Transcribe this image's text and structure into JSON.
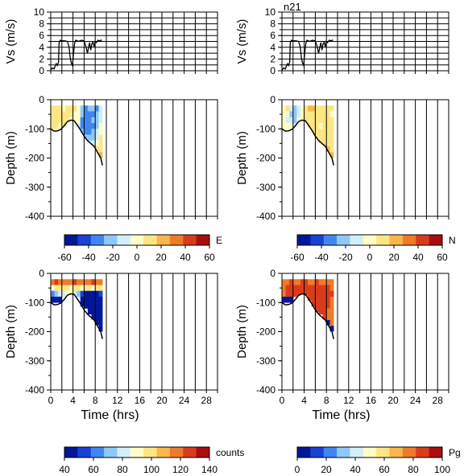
{
  "figure_tag": "n21",
  "colors": {
    "bathymetry_line": "#000000",
    "grid_line": "#000000",
    "frame": "#000000"
  },
  "colorscale": [
    "#00169b",
    "#1743d3",
    "#3f86f4",
    "#8fc8f8",
    "#d2eefd",
    "#fffdc6",
    "#fce684",
    "#f9b64a",
    "#ef7a2a",
    "#d83c1d",
    "#a80d10"
  ],
  "chart_data": [
    {
      "type": "line",
      "panel": "speed-left",
      "ylabel": "Vs (m/s)",
      "xlabel": "",
      "xlim": [
        0,
        30
      ],
      "ylim": [
        0,
        10
      ],
      "yticks": [
        0,
        2,
        4,
        6,
        8,
        10
      ],
      "grid": true,
      "x": [
        0.0,
        0.3,
        0.6,
        0.8,
        1.0,
        1.2,
        1.4,
        1.5,
        1.7,
        2.0,
        2.5,
        3.0,
        3.3,
        3.5,
        3.7,
        3.9,
        4.1,
        4.3,
        4.5,
        5.0,
        5.5,
        6.0,
        6.3,
        6.6,
        6.8,
        7.0,
        7.2,
        7.4,
        7.6,
        7.8,
        8.0,
        8.2,
        8.5,
        8.8,
        9.0,
        9.2
      ],
      "y": [
        0.1,
        0.5,
        0.3,
        0.8,
        1.2,
        0.9,
        1.5,
        4.8,
        5.2,
        5.1,
        5.1,
        5.0,
        4.0,
        2.2,
        1.3,
        0.9,
        3.0,
        4.7,
        5.2,
        5.0,
        5.2,
        5.1,
        4.2,
        3.0,
        4.0,
        4.8,
        3.5,
        4.6,
        4.9,
        4.1,
        5.0,
        4.8,
        5.2,
        5.1,
        5.2,
        5.2
      ]
    },
    {
      "type": "line",
      "panel": "speed-right",
      "ylabel": "Vs (m/s)",
      "xlabel": "",
      "xlim": [
        0,
        30
      ],
      "ylim": [
        0,
        10
      ],
      "yticks": [
        0,
        2,
        4,
        6,
        8,
        10
      ],
      "grid": true,
      "x": [
        0.0,
        0.3,
        0.6,
        0.8,
        1.0,
        1.2,
        1.4,
        1.5,
        1.7,
        2.0,
        2.5,
        3.0,
        3.3,
        3.5,
        3.7,
        3.9,
        4.1,
        4.3,
        4.5,
        5.0,
        5.5,
        6.0,
        6.3,
        6.6,
        6.8,
        7.0,
        7.2,
        7.4,
        7.6,
        7.8,
        8.0,
        8.2,
        8.5,
        8.8,
        9.0,
        9.2
      ],
      "y": [
        0.1,
        0.5,
        0.3,
        0.8,
        1.2,
        0.9,
        1.5,
        4.8,
        5.2,
        5.1,
        5.1,
        5.0,
        4.0,
        2.2,
        1.3,
        0.9,
        3.0,
        4.7,
        5.2,
        5.0,
        5.2,
        5.1,
        4.2,
        3.0,
        4.0,
        4.8,
        3.5,
        4.6,
        4.9,
        4.1,
        5.0,
        4.8,
        5.2,
        5.1,
        5.2,
        5.2
      ]
    },
    {
      "type": "heatmap",
      "panel": "E",
      "ylabel": "Depth (m)",
      "xlabel": "",
      "xlim": [
        0,
        30
      ],
      "ylim": [
        -400,
        0
      ],
      "yticks": [
        -400,
        -300,
        -200,
        -100,
        0
      ],
      "xticks": [],
      "colorbar": {
        "label": "E",
        "ticks": [
          -60,
          -40,
          -20,
          0,
          20,
          40,
          60
        ],
        "range": [
          -60,
          60
        ]
      },
      "data_extent": {
        "x": [
          0,
          9.3
        ],
        "depth_top": -20
      },
      "rows": [
        [
          10,
          12,
          8,
          5,
          12,
          15,
          10,
          5,
          -20,
          -30,
          -25,
          -22,
          -28,
          -15
        ],
        [
          12,
          10,
          6,
          8,
          14,
          10,
          5,
          0,
          -25,
          -35,
          -30,
          -28,
          -20,
          -10
        ],
        [
          10,
          8,
          10,
          12,
          8,
          5,
          2,
          -5,
          -28,
          -30,
          -35,
          -25,
          -22,
          -8
        ],
        [
          8,
          6,
          5,
          10,
          6,
          3,
          0,
          -8,
          -30,
          -32,
          -28,
          -30,
          -18,
          0
        ],
        [
          0,
          0,
          0,
          0,
          4,
          2,
          -2,
          -10,
          -25,
          -28,
          -30,
          -26,
          -15,
          5
        ],
        [
          0,
          0,
          0,
          0,
          0,
          0,
          0,
          0,
          -20,
          -22,
          -25,
          -22,
          -10,
          10
        ],
        [
          0,
          0,
          0,
          0,
          0,
          0,
          0,
          0,
          0,
          0,
          -15,
          -12,
          -5,
          12
        ],
        [
          0,
          0,
          0,
          0,
          0,
          0,
          0,
          0,
          0,
          0,
          0,
          0,
          8,
          15
        ],
        [
          0,
          0,
          0,
          0,
          0,
          0,
          0,
          0,
          0,
          0,
          0,
          0,
          0,
          18
        ]
      ]
    },
    {
      "type": "heatmap",
      "panel": "N",
      "ylabel": "Depth (m)",
      "xlabel": "",
      "xlim": [
        0,
        30
      ],
      "ylim": [
        -400,
        0
      ],
      "yticks": [
        -400,
        -300,
        -200,
        -100,
        0
      ],
      "xticks": [],
      "colorbar": {
        "label": "N",
        "ticks": [
          -60,
          -40,
          -20,
          0,
          20,
          40,
          60
        ],
        "range": [
          -60,
          60
        ]
      },
      "data_extent": {
        "x": [
          0,
          9.3
        ],
        "depth_top": -20
      },
      "rows": [
        [
          5,
          8,
          -15,
          -20,
          -10,
          5,
          15,
          20,
          18,
          12,
          10,
          15,
          12,
          8
        ],
        [
          0,
          -5,
          -20,
          -25,
          -12,
          0,
          10,
          15,
          12,
          10,
          8,
          10,
          10,
          5
        ],
        [
          0,
          -8,
          -15,
          -18,
          -5,
          5,
          8,
          10,
          12,
          10,
          6,
          8,
          12,
          6
        ],
        [
          0,
          0,
          0,
          -10,
          0,
          8,
          10,
          12,
          10,
          8,
          5,
          10,
          12,
          8
        ],
        [
          0,
          0,
          0,
          0,
          5,
          6,
          8,
          10,
          8,
          6,
          8,
          12,
          14,
          10
        ],
        [
          0,
          0,
          0,
          0,
          0,
          0,
          0,
          0,
          10,
          8,
          10,
          14,
          15,
          12
        ],
        [
          0,
          0,
          0,
          0,
          0,
          0,
          0,
          0,
          0,
          0,
          12,
          15,
          16,
          14
        ],
        [
          0,
          0,
          0,
          0,
          0,
          0,
          0,
          0,
          0,
          0,
          0,
          0,
          18,
          16
        ],
        [
          0,
          0,
          0,
          0,
          0,
          0,
          0,
          0,
          0,
          0,
          0,
          0,
          0,
          18
        ]
      ]
    },
    {
      "type": "heatmap",
      "panel": "counts",
      "ylabel": "Depth (m)",
      "xlabel": "Time (hrs)",
      "xlim": [
        0,
        30
      ],
      "ylim": [
        -400,
        0
      ],
      "yticks": [
        -400,
        -300,
        -200,
        -100,
        0
      ],
      "xticks": [
        0,
        4,
        8,
        12,
        16,
        20,
        24,
        28
      ],
      "colorbar": {
        "label": "counts",
        "ticks": [
          40,
          60,
          80,
          100,
          120,
          140
        ],
        "range": [
          40,
          140
        ]
      },
      "data_extent": {
        "x": [
          0,
          9.3
        ],
        "depth_top": -20
      },
      "rows": [
        [
          118,
          122,
          120,
          119,
          121,
          120,
          122,
          118,
          120,
          121,
          119,
          122,
          120,
          118
        ],
        [
          92,
          95,
          98,
          100,
          96,
          94,
          97,
          95,
          93,
          98,
          96,
          94,
          97,
          95
        ],
        [
          62,
          70,
          80,
          85,
          88,
          86,
          82,
          75,
          50,
          45,
          44,
          43,
          45,
          50
        ],
        [
          0,
          0,
          0,
          0,
          0,
          0,
          0,
          0,
          45,
          42,
          42,
          42,
          43,
          45
        ],
        [
          0,
          0,
          0,
          0,
          0,
          0,
          0,
          0,
          42,
          41,
          40,
          41,
          42,
          43
        ],
        [
          0,
          0,
          0,
          0,
          0,
          0,
          0,
          0,
          0,
          0,
          40,
          41,
          42,
          42
        ],
        [
          0,
          0,
          0,
          0,
          0,
          0,
          0,
          0,
          0,
          0,
          0,
          0,
          42,
          42
        ],
        [
          0,
          0,
          0,
          0,
          0,
          0,
          0,
          0,
          0,
          0,
          0,
          0,
          0,
          43
        ],
        [
          0,
          0,
          0,
          0,
          0,
          0,
          0,
          0,
          0,
          0,
          0,
          0,
          0,
          0
        ]
      ]
    },
    {
      "type": "heatmap",
      "panel": "Pg",
      "ylabel": "Depth (m)",
      "xlabel": "Time (hrs)",
      "xlim": [
        0,
        30
      ],
      "ylim": [
        -400,
        0
      ],
      "yticks": [
        -400,
        -300,
        -200,
        -100,
        0
      ],
      "xticks": [
        0,
        4,
        8,
        12,
        16,
        20,
        24,
        28
      ],
      "colorbar": {
        "label": "Pg",
        "ticks": [
          0,
          20,
          40,
          60,
          80,
          100
        ],
        "range": [
          0,
          100
        ]
      },
      "data_extent": {
        "x": [
          0,
          9.3
        ],
        "depth_top": -20
      },
      "rows": [
        [
          75,
          80,
          82,
          78,
          80,
          84,
          82,
          80,
          78,
          82,
          80,
          78,
          80,
          76
        ],
        [
          80,
          85,
          88,
          86,
          84,
          88,
          86,
          84,
          82,
          86,
          84,
          82,
          84,
          80
        ],
        [
          78,
          82,
          86,
          88,
          85,
          86,
          88,
          86,
          84,
          85,
          86,
          84,
          82,
          82
        ],
        [
          0,
          0,
          0,
          0,
          84,
          85,
          86,
          85,
          84,
          86,
          85,
          84,
          82,
          80
        ],
        [
          0,
          0,
          0,
          0,
          0,
          0,
          0,
          84,
          85,
          86,
          84,
          83,
          82,
          80
        ],
        [
          0,
          0,
          0,
          0,
          0,
          0,
          0,
          0,
          0,
          85,
          84,
          83,
          80,
          78
        ],
        [
          0,
          0,
          0,
          0,
          0,
          0,
          0,
          0,
          0,
          0,
          0,
          82,
          80,
          76
        ],
        [
          0,
          0,
          0,
          0,
          0,
          0,
          0,
          0,
          0,
          0,
          0,
          0,
          0,
          74
        ],
        [
          0,
          0,
          0,
          0,
          0,
          0,
          0,
          0,
          0,
          0,
          0,
          0,
          0,
          0
        ]
      ]
    }
  ],
  "bathymetry": {
    "x": [
      0,
      0.6,
      1.2,
      1.8,
      2.4,
      3.0,
      3.6,
      4.2,
      4.8,
      5.4,
      6.0,
      6.6,
      7.2,
      7.8,
      8.4,
      9.0,
      9.3
    ],
    "depth": [
      -100,
      -108,
      -107,
      -102,
      -90,
      -75,
      -70,
      -72,
      -88,
      -105,
      -125,
      -140,
      -150,
      -160,
      -180,
      -200,
      -225
    ]
  }
}
